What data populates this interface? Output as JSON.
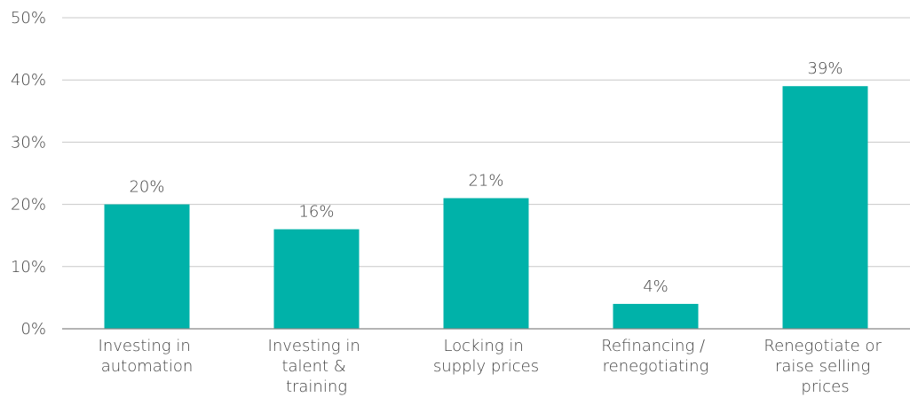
{
  "chart_data": {
    "type": "bar",
    "categories": [
      "Investing in automation",
      "Investing in talent & training",
      "Locking in supply prices",
      "Refinancing / renegotiating",
      "Renegotiate or raise selling prices"
    ],
    "values": [
      20,
      16,
      21,
      4,
      39
    ],
    "value_labels": [
      "20%",
      "16%",
      "21%",
      "4%",
      "39%"
    ],
    "color": "#00b2a9",
    "ylim": [
      0,
      50
    ],
    "yticks": [
      {
        "value": 0,
        "label": "0%"
      },
      {
        "value": 10,
        "label": "10%"
      },
      {
        "value": 20,
        "label": "20%"
      },
      {
        "value": 30,
        "label": "30%"
      },
      {
        "value": 40,
        "label": "40%"
      },
      {
        "value": 50,
        "label": "50%"
      }
    ],
    "grid": true
  }
}
